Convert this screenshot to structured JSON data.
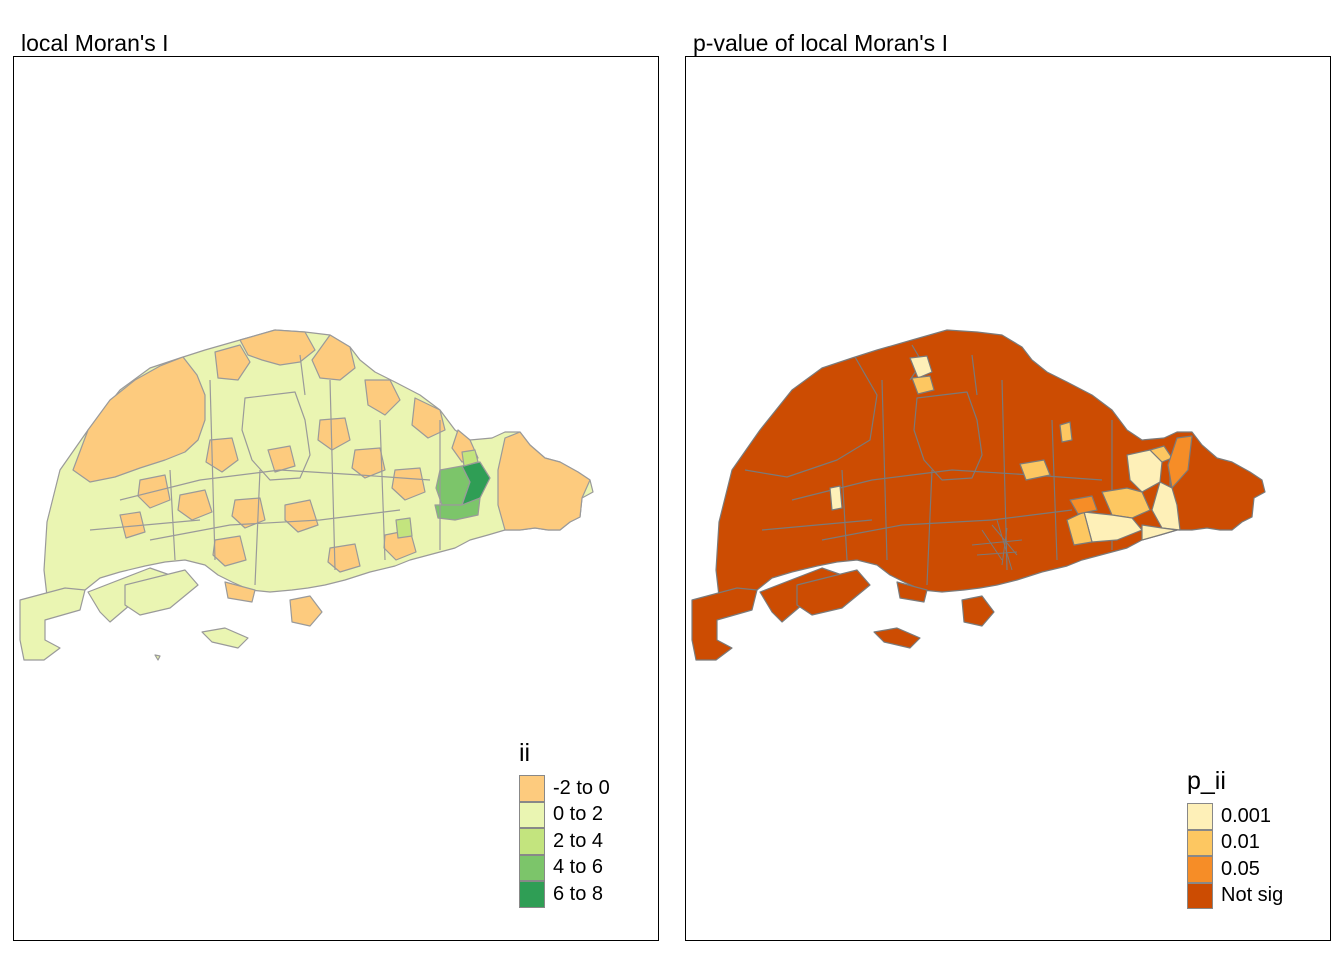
{
  "panels": [
    {
      "id": "left",
      "title": "local Moran's I",
      "legend": {
        "title": "ii",
        "items": [
          {
            "label": "-2 to 0",
            "color": "#fdcb7e"
          },
          {
            "label": "0 to 2",
            "color": "#eaf5b2"
          },
          {
            "label": "2 to 4",
            "color": "#c3e47e"
          },
          {
            "label": "4 to 6",
            "color": "#7cc56a"
          },
          {
            "label": "6 to 8",
            "color": "#2f9e55"
          }
        ]
      },
      "region_border_color": "#9a9a9a"
    },
    {
      "id": "right",
      "title": "p-value of local Moran's I",
      "legend": {
        "title": "p_ii",
        "items": [
          {
            "label": "0.001",
            "color": "#fef0b8"
          },
          {
            "label": "0.01",
            "color": "#fdc761"
          },
          {
            "label": "0.05",
            "color": "#f68d27"
          },
          {
            "label": "Not sig",
            "color": "#cc4c02"
          }
        ]
      },
      "region_border_color": "#7a7a7a"
    }
  ]
}
